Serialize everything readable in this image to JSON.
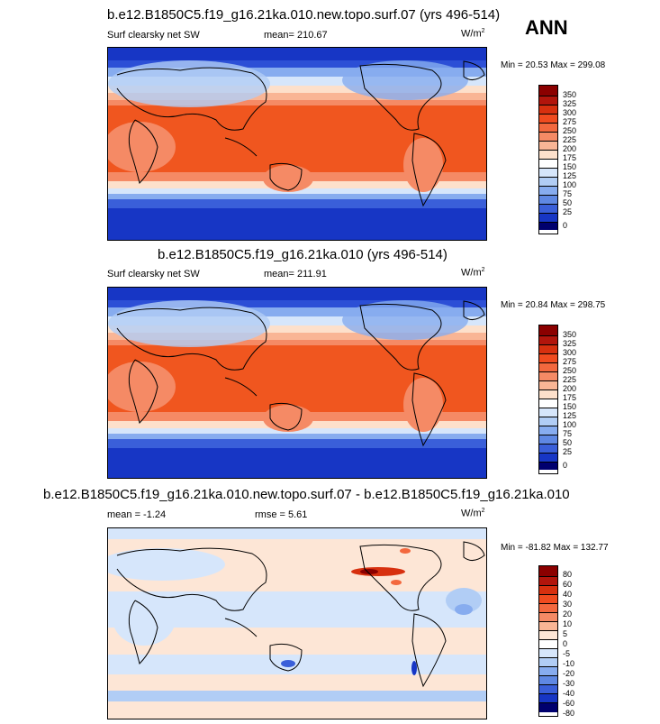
{
  "season": "ANN",
  "panels": [
    {
      "title": "b.e12.B1850C5.f19_g16.21ka.010.new.topo.surf.07 (yrs 496-514)",
      "variable": "Surf clearsky net SW",
      "mean_label": "mean= 210.67",
      "units": "W/m",
      "units_sup": "2",
      "minmax": "Min =  20.53 Max = 299.08",
      "levels": [
        "350",
        "325",
        "300",
        "275",
        "250",
        "225",
        "200",
        "175",
        "150",
        "125",
        "100",
        "75",
        "50",
        "25",
        "0"
      ]
    },
    {
      "title": "b.e12.B1850C5.f19_g16.21ka.010 (yrs 496-514)",
      "variable": "Surf clearsky net SW",
      "mean_label": "mean= 211.91",
      "units": "W/m",
      "units_sup": "2",
      "minmax": "Min =  20.84 Max = 298.75",
      "levels": [
        "350",
        "325",
        "300",
        "275",
        "250",
        "225",
        "200",
        "175",
        "150",
        "125",
        "100",
        "75",
        "50",
        "25",
        "0"
      ]
    },
    {
      "title": "b.e12.B1850C5.f19_g16.21ka.010.new.topo.surf.07 - b.e12.B1850C5.f19_g16.21ka.010",
      "variable": "",
      "mean_label": "mean =  -1.24",
      "rmse_label": "rmse =   5.61",
      "units": "W/m",
      "units_sup": "2",
      "minmax": "Min = -81.82 Max = 132.77",
      "levels": [
        "80",
        "60",
        "40",
        "30",
        "20",
        "10",
        "5",
        "0",
        "-5",
        "-10",
        "-20",
        "-30",
        "-40",
        "-60",
        "-80"
      ]
    }
  ],
  "colors": {
    "abs_scale": [
      "#8b0000",
      "#b2150c",
      "#d7300f",
      "#f04b1f",
      "#f3683e",
      "#f58a65",
      "#f9b595",
      "#fde0cb",
      "#ffffff",
      "#d6e6fb",
      "#b1cdf5",
      "#87acef",
      "#5f88e3",
      "#3a5fd9",
      "#1736c5",
      "#0a1c9a",
      "#00006e"
    ],
    "diff_scale": [
      "#8b0000",
      "#b2150c",
      "#d7300f",
      "#f04b1f",
      "#f3683e",
      "#f58a65",
      "#f9b595",
      "#fde6d6",
      "#d6e6fb",
      "#b1cdf5",
      "#87acef",
      "#5f88e3",
      "#3a5fd9",
      "#1736c5",
      "#0a1c9a",
      "#00006e"
    ]
  },
  "chart_data": [
    {
      "type": "heatmap",
      "title": "b.e12.B1850C5.f19_g16.21ka.010.new.topo.surf.07 (yrs 496-514)",
      "field": "Surf clearsky net SW",
      "units": "W/m2",
      "mean": 210.67,
      "min": 20.53,
      "max": 299.08,
      "contour_levels": [
        0,
        25,
        50,
        75,
        100,
        125,
        150,
        175,
        200,
        225,
        250,
        275,
        300,
        325,
        350
      ],
      "pattern": {
        "tropics": 275,
        "subtropics": 240,
        "midlatitudes": 150,
        "high_latitudes": 40
      }
    },
    {
      "type": "heatmap",
      "title": "b.e12.B1850C5.f19_g16.21ka.010 (yrs 496-514)",
      "field": "Surf clearsky net SW",
      "units": "W/m2",
      "mean": 211.91,
      "min": 20.84,
      "max": 298.75,
      "contour_levels": [
        0,
        25,
        50,
        75,
        100,
        125,
        150,
        175,
        200,
        225,
        250,
        275,
        300,
        325,
        350
      ],
      "pattern": {
        "tropics": 275,
        "subtropics": 240,
        "midlatitudes": 150,
        "high_latitudes": 40
      }
    },
    {
      "type": "heatmap",
      "title": "b.e12.B1850C5.f19_g16.21ka.010.new.topo.surf.07 - b.e12.B1850C5.f19_g16.21ka.010",
      "units": "W/m2",
      "mean": -1.24,
      "rmse": 5.61,
      "min": -81.82,
      "max": 132.77,
      "contour_levels": [
        -80,
        -60,
        -40,
        -30,
        -20,
        -10,
        -5,
        0,
        5,
        10,
        20,
        30,
        40,
        60,
        80
      ]
    }
  ]
}
